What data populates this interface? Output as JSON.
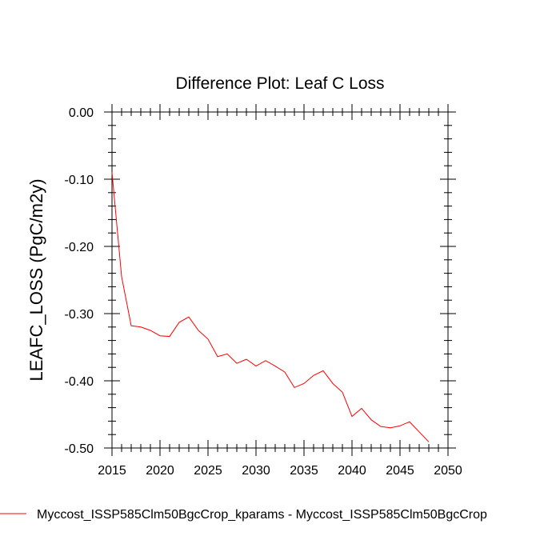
{
  "chart_data": {
    "type": "line",
    "title": "Difference Plot: Leaf C Loss",
    "xlabel": "",
    "ylabel": "LEAFC_LOSS  (PgC/m2y)",
    "xlim": [
      2015,
      2050
    ],
    "ylim": [
      -0.5,
      0.0
    ],
    "xticks": [
      2015,
      2020,
      2025,
      2030,
      2035,
      2040,
      2045,
      2050
    ],
    "xtick_labels": [
      "2015",
      "2020",
      "2025",
      "2030",
      "2035",
      "2040",
      "2045",
      "2050"
    ],
    "yticks": [
      0.0,
      -0.1,
      -0.2,
      -0.3,
      -0.4,
      -0.5
    ],
    "ytick_labels": [
      "0.00",
      "-0.10",
      "-0.20",
      "-0.30",
      "-0.40",
      "-0.50"
    ],
    "legend_position": "bottom",
    "series": [
      {
        "name": "Myccost_ISSP585Clm50BgcCrop_kparams - Myccost_ISSP585Clm50BgcCrop",
        "color": "#ff0000",
        "x": [
          2015,
          2016,
          2017,
          2018,
          2019,
          2020,
          2021,
          2022,
          2023,
          2024,
          2025,
          2026,
          2027,
          2028,
          2029,
          2030,
          2031,
          2032,
          2033,
          2034,
          2035,
          2036,
          2037,
          2038,
          2039,
          2040,
          2041,
          2042,
          2043,
          2044,
          2045,
          2046,
          2047,
          2048
        ],
        "y": [
          -0.09,
          -0.245,
          -0.318,
          -0.32,
          -0.325,
          -0.333,
          -0.334,
          -0.313,
          -0.305,
          -0.325,
          -0.338,
          -0.364,
          -0.36,
          -0.374,
          -0.368,
          -0.378,
          -0.37,
          -0.378,
          -0.387,
          -0.41,
          -0.404,
          -0.392,
          -0.385,
          -0.404,
          -0.417,
          -0.453,
          -0.441,
          -0.458,
          -0.468,
          -0.47,
          -0.467,
          -0.461,
          -0.476,
          -0.491
        ]
      }
    ]
  }
}
